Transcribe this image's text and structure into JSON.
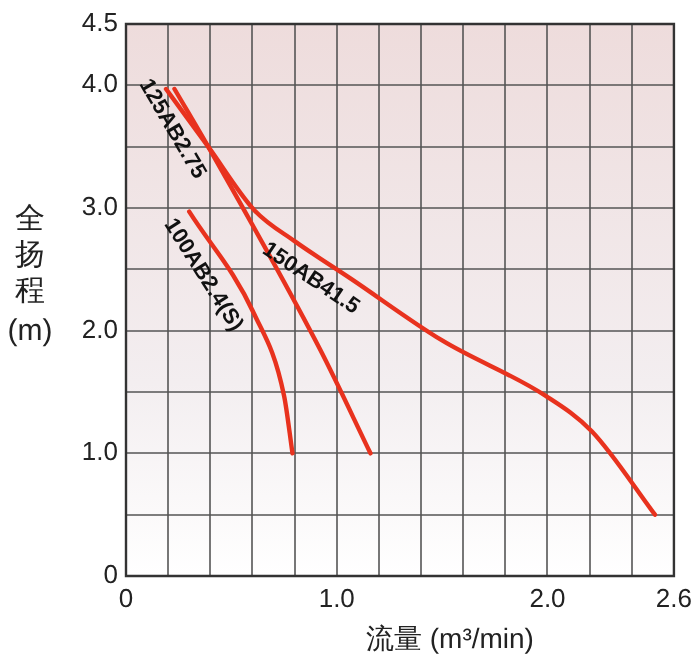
{
  "chart_data": {
    "type": "line",
    "xlabel": "流量 (m³/min)",
    "ylabel": "全扬程 (m)",
    "xlim": [
      0,
      2.6
    ],
    "ylim": [
      0,
      4.5
    ],
    "xticks": [
      0,
      {
        "value": 0.2,
        "label": null
      },
      {
        "value": 0.4,
        "label": null
      },
      {
        "value": 0.6,
        "label": null
      },
      {
        "value": 0.8,
        "label": null
      },
      "1.0",
      {
        "value": 1.2,
        "label": null
      },
      {
        "value": 1.4,
        "label": null
      },
      {
        "value": 1.6,
        "label": null
      },
      {
        "value": 1.8,
        "label": null
      },
      "2.0",
      {
        "value": 2.2,
        "label": null
      },
      {
        "value": 2.4,
        "label": null
      },
      2.6
    ],
    "yticks": [
      0,
      {
        "value": 0.5,
        "label": null
      },
      "1.0",
      {
        "value": 1.5,
        "label": null
      },
      "2.0",
      {
        "value": 2.5,
        "label": null
      },
      "3.0",
      {
        "value": 3.5,
        "label": null
      },
      "4.0",
      4.5
    ],
    "grid": true,
    "legend": false,
    "marker": "none",
    "line_style": "solid",
    "series": [
      {
        "name": "150AB41.5",
        "color": "#e8321e",
        "x": [
          0.19,
          0.39,
          0.61,
          0.8,
          1.07,
          1.5,
          1.99,
          2.21,
          2.51
        ],
        "values": [
          3.97,
          3.5,
          2.98,
          2.73,
          2.42,
          1.92,
          1.47,
          1.18,
          0.5
        ]
      },
      {
        "name": "125AB2.75",
        "color": "#e8321e",
        "x": [
          0.23,
          0.39,
          0.92,
          1.16
        ],
        "values": [
          3.97,
          3.5,
          1.85,
          1.0
        ]
      },
      {
        "name": "100AB2.4(S)",
        "color": "#e8321e",
        "x": [
          0.3,
          0.61,
          0.75,
          0.79
        ],
        "values": [
          2.97,
          2.13,
          1.47,
          1.0
        ]
      }
    ]
  }
}
